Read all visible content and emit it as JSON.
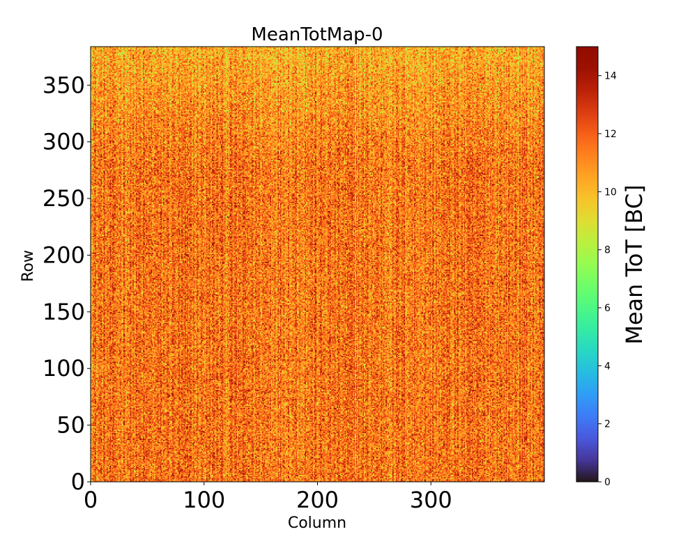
{
  "chart_data": {
    "type": "heatmap",
    "title": "MeanTotMap-0",
    "xlabel": "Column",
    "ylabel": "Row",
    "xlim": [
      0,
      400
    ],
    "ylim": [
      0,
      384
    ],
    "xticks": [
      0,
      100,
      200,
      300
    ],
    "yticks": [
      0,
      50,
      100,
      150,
      200,
      250,
      300,
      350
    ],
    "colorbar": {
      "label": "Mean ToT [BC]",
      "range": [
        0,
        15
      ],
      "ticks": [
        0,
        2,
        4,
        6,
        8,
        10,
        12,
        14
      ],
      "colormap": "turbo"
    },
    "value_summary": {
      "typical_range": [
        7,
        15
      ],
      "dominant_value": 11.5
    },
    "grid": false
  }
}
